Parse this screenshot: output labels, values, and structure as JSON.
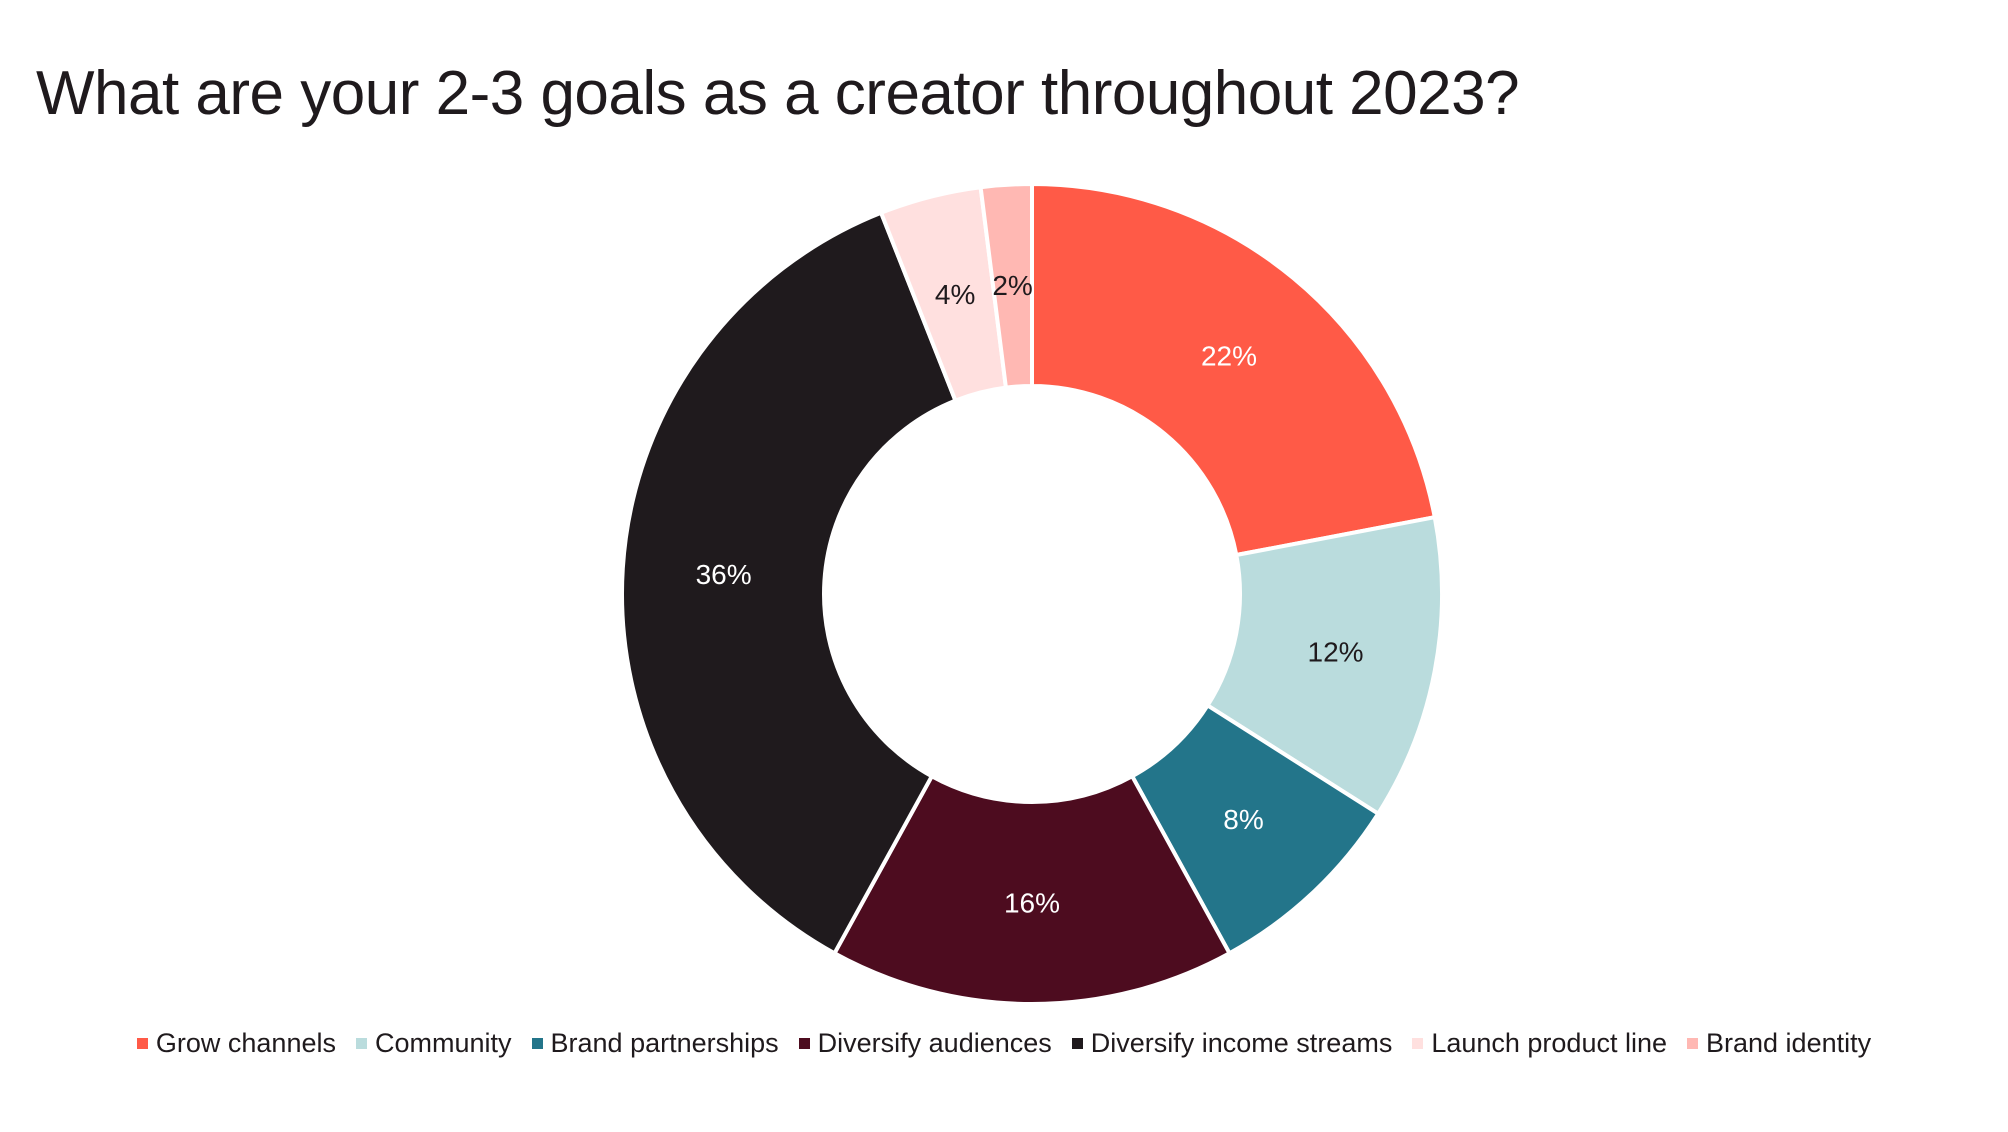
{
  "title": "What are your 2-3 goals as a creator throughout 2023?",
  "chart_data": {
    "type": "pie",
    "title": "What are your 2-3 goals as a creator throughout 2023?",
    "donut": true,
    "categories": [
      "Grow channels",
      "Community",
      "Brand partnerships",
      "Diversify audiences",
      "Diversify income streams",
      "Launch product line",
      "Brand identity"
    ],
    "values": [
      22,
      12,
      8,
      16,
      36,
      4,
      2
    ],
    "labels": [
      "22%",
      "12%",
      "8%",
      "16%",
      "36%",
      "4%",
      "2%"
    ],
    "colors": [
      "#ff5a47",
      "#badcdd",
      "#23758a",
      "#4d0c1f",
      "#1f1a1d",
      "#ffe0df",
      "#ffb8b3"
    ],
    "label_colors": [
      "#ffffff",
      "#1f1a1d",
      "#ffffff",
      "#ffffff",
      "#ffffff",
      "#1f1a1d",
      "#1f1a1d"
    ],
    "legend_position": "bottom"
  }
}
